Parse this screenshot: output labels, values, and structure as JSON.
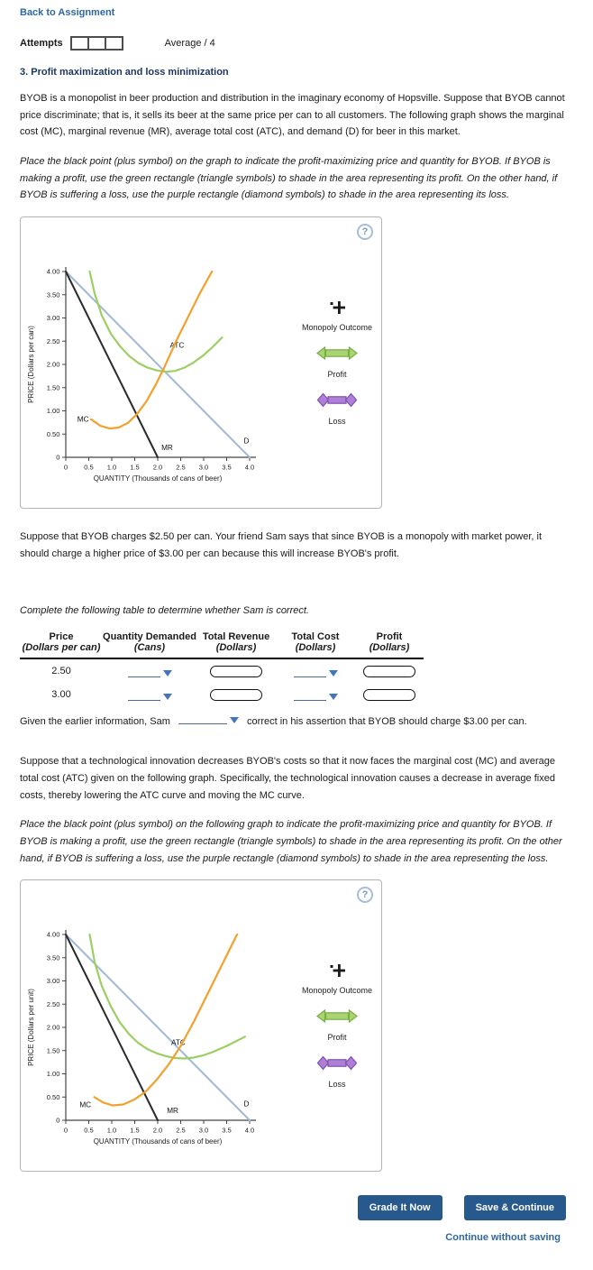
{
  "header": {
    "back_link": "Back to Assignment",
    "attempts_label": "Attempts",
    "average_label": "Average / 4"
  },
  "question": {
    "title": "3. Profit maximization and loss minimization",
    "intro": "BYOB is a monopolist in beer production and distribution in the imaginary economy of Hopsville. Suppose that BYOB cannot price discriminate; that is, it sells its beer at the same price per can to all customers. The following graph shows the marginal cost (MC), marginal revenue (MR), average total cost (ATC), and demand (D) for beer in this market.",
    "instruction1": "Place the black point (plus symbol) on the graph to indicate the profit-maximizing price and quantity for BYOB. If BYOB is making a profit, use the green rectangle (triangle symbols) to shade in the area representing its profit. On the other hand, if BYOB is suffering a loss, use the purple rectangle (diamond symbols) to shade in the area representing its loss.",
    "sam_paragraph": "Suppose that BYOB charges $2.50 per can. Your friend Sam says that since BYOB is a monopoly with market power, it should charge a higher price of $3.00 per can because this will increase BYOB's profit.",
    "table_instruction": "Complete the following table to determine whether Sam is correct.",
    "conclusion_pre": "Given the earlier information, Sam",
    "conclusion_post": "correct in his assertion that BYOB should charge $3.00 per can.",
    "innovation_paragraph": "Suppose that a technological innovation decreases BYOB's costs so that it now faces the marginal cost (MC) and average total cost (ATC) given on the following graph. Specifically, the technological innovation causes a decrease in average fixed costs, thereby lowering the ATC curve and moving the MC curve.",
    "instruction2": "Place the black point (plus symbol) on the following graph to indicate the profit-maximizing price and quantity for BYOB. If BYOB is making a profit, use the green rectangle (triangle symbols) to shade in the area representing its profit. On the other hand, if BYOB is suffering a loss, use the purple rectangle (diamond symbols) to shade in the area representing the loss."
  },
  "legend": {
    "monopoly": "Monopoly Outcome",
    "profit": "Profit",
    "loss": "Loss",
    "help": "?"
  },
  "table": {
    "headers": [
      {
        "line1": "Price",
        "line2": "(Dollars per can)"
      },
      {
        "line1": "Quantity Demanded",
        "line2": "(Cans)"
      },
      {
        "line1": "Total Revenue",
        "line2": "(Dollars)"
      },
      {
        "line1": "Total Cost",
        "line2": "(Dollars)"
      },
      {
        "line1": "Profit",
        "line2": "(Dollars)"
      }
    ],
    "rows": [
      {
        "price": "2.50"
      },
      {
        "price": "3.00"
      }
    ]
  },
  "buttons": {
    "grade": "Grade It Now",
    "save": "Save & Continue",
    "continue_without_saving": "Continue without saving"
  },
  "colors": {
    "demand": "#9fb9d6",
    "marginal_revenue": "#2a2a2a",
    "marginal_cost": "#f2a12c",
    "average_total_cost": "#9ccf63",
    "profit_tool": "#abd371",
    "loss_tool": "#af7fd8",
    "accent_navy": "#27598d"
  },
  "chart_data": [
    {
      "type": "line",
      "title": "",
      "ylabel": "PRICE (Dollars per can)",
      "xlabel": "QUANTITY (Thousands of cans of beer)",
      "xlim": [
        0,
        4
      ],
      "ylim": [
        0,
        4
      ],
      "x_tick_step": 0.5,
      "y_tick_step": 0.5,
      "x_tick_labels": [
        "0",
        "0.5",
        "1.0",
        "1.5",
        "2.0",
        "2.5",
        "3.0",
        "3.5",
        "4.0"
      ],
      "y_tick_labels": [
        "0",
        "0.50",
        "1.00",
        "1.50",
        "2.00",
        "2.50",
        "3.00",
        "3.50",
        "4.00"
      ],
      "grid": false,
      "legend_position": "right",
      "series": [
        {
          "name": "D",
          "color": "#9fb9d6",
          "width": 2,
          "anchor": "middle",
          "label_at": [
            3.93,
            0.3
          ],
          "points": [
            [
              0,
              4
            ],
            [
              4,
              0
            ]
          ]
        },
        {
          "name": "MR",
          "color": "#2a2a2a",
          "width": 2,
          "anchor": "start",
          "label_at": [
            2.08,
            0.16
          ],
          "points": [
            [
              0,
              4
            ],
            [
              2,
              0
            ]
          ]
        },
        {
          "name": "ATC",
          "color": "#9ccf63",
          "width": 2.2,
          "anchor": "middle",
          "label_at": [
            2.42,
            2.36
          ],
          "points": [
            [
              0.52,
              4
            ],
            [
              0.63,
              3.52
            ],
            [
              0.78,
              3.06
            ],
            [
              0.98,
              2.66
            ],
            [
              1.18,
              2.39
            ],
            [
              1.38,
              2.18
            ],
            [
              1.58,
              2.03
            ],
            [
              1.78,
              1.93
            ],
            [
              1.98,
              1.87
            ],
            [
              2.18,
              1.84
            ],
            [
              2.38,
              1.86
            ],
            [
              2.58,
              1.93
            ],
            [
              2.78,
              2.04
            ],
            [
              3.0,
              2.2
            ],
            [
              3.2,
              2.38
            ],
            [
              3.4,
              2.58
            ]
          ]
        },
        {
          "name": "MC",
          "color": "#f2a12c",
          "width": 2.2,
          "anchor": "end",
          "label_at": [
            0.5,
            0.77
          ],
          "points": [
            [
              0.55,
              0.82
            ],
            [
              0.75,
              0.68
            ],
            [
              0.95,
              0.62
            ],
            [
              1.15,
              0.64
            ],
            [
              1.35,
              0.74
            ],
            [
              1.55,
              0.93
            ],
            [
              1.75,
              1.2
            ],
            [
              1.95,
              1.55
            ],
            [
              2.15,
              1.95
            ],
            [
              2.4,
              2.5
            ],
            [
              2.65,
              3.0
            ],
            [
              2.9,
              3.5
            ],
            [
              3.15,
              3.95
            ],
            [
              3.18,
              4.0
            ]
          ]
        }
      ]
    },
    {
      "type": "line",
      "title": "",
      "ylabel": "PRICE (Dollars per unit)",
      "xlabel": "QUANTITY (Thousands of cans of beer)",
      "xlim": [
        0,
        4
      ],
      "ylim": [
        0,
        4
      ],
      "x_tick_step": 0.5,
      "y_tick_step": 0.5,
      "x_tick_labels": [
        "0",
        "0.5",
        "1.0",
        "1.5",
        "2.0",
        "2.5",
        "3.0",
        "3.5",
        "4.0"
      ],
      "y_tick_labels": [
        "0",
        "0.50",
        "1.00",
        "1.50",
        "2.00",
        "2.50",
        "3.00",
        "3.50",
        "4.00"
      ],
      "grid": false,
      "legend_position": "right",
      "series": [
        {
          "name": "D",
          "color": "#9fb9d6",
          "width": 2,
          "anchor": "middle",
          "label_at": [
            3.93,
            0.3
          ],
          "points": [
            [
              0,
              4
            ],
            [
              4,
              0
            ]
          ]
        },
        {
          "name": "MR",
          "color": "#2a2a2a",
          "width": 2,
          "anchor": "start",
          "label_at": [
            2.2,
            0.16
          ],
          "points": [
            [
              0,
              4
            ],
            [
              2,
              0
            ]
          ]
        },
        {
          "name": "ATC",
          "color": "#9ccf63",
          "width": 2.2,
          "anchor": "middle",
          "label_at": [
            2.45,
            1.62
          ],
          "points": [
            [
              0.52,
              4
            ],
            [
              0.63,
              3.4
            ],
            [
              0.78,
              2.9
            ],
            [
              0.98,
              2.45
            ],
            [
              1.18,
              2.1
            ],
            [
              1.38,
              1.85
            ],
            [
              1.58,
              1.66
            ],
            [
              1.78,
              1.53
            ],
            [
              1.98,
              1.44
            ],
            [
              2.18,
              1.38
            ],
            [
              2.38,
              1.34
            ],
            [
              2.58,
              1.33
            ],
            [
              2.78,
              1.35
            ],
            [
              3.0,
              1.4
            ],
            [
              3.2,
              1.47
            ],
            [
              3.5,
              1.6
            ],
            [
              3.9,
              1.8
            ]
          ]
        },
        {
          "name": "MC",
          "color": "#f2a12c",
          "width": 2.2,
          "anchor": "end",
          "label_at": [
            0.55,
            0.28
          ],
          "points": [
            [
              0.62,
              0.5
            ],
            [
              0.82,
              0.38
            ],
            [
              1.02,
              0.32
            ],
            [
              1.25,
              0.34
            ],
            [
              1.5,
              0.45
            ],
            [
              1.75,
              0.63
            ],
            [
              2.0,
              0.9
            ],
            [
              2.25,
              1.22
            ],
            [
              2.5,
              1.6
            ],
            [
              2.8,
              2.15
            ],
            [
              3.1,
              2.75
            ],
            [
              3.4,
              3.35
            ],
            [
              3.7,
              3.95
            ],
            [
              3.73,
              4.0
            ]
          ]
        }
      ]
    }
  ]
}
